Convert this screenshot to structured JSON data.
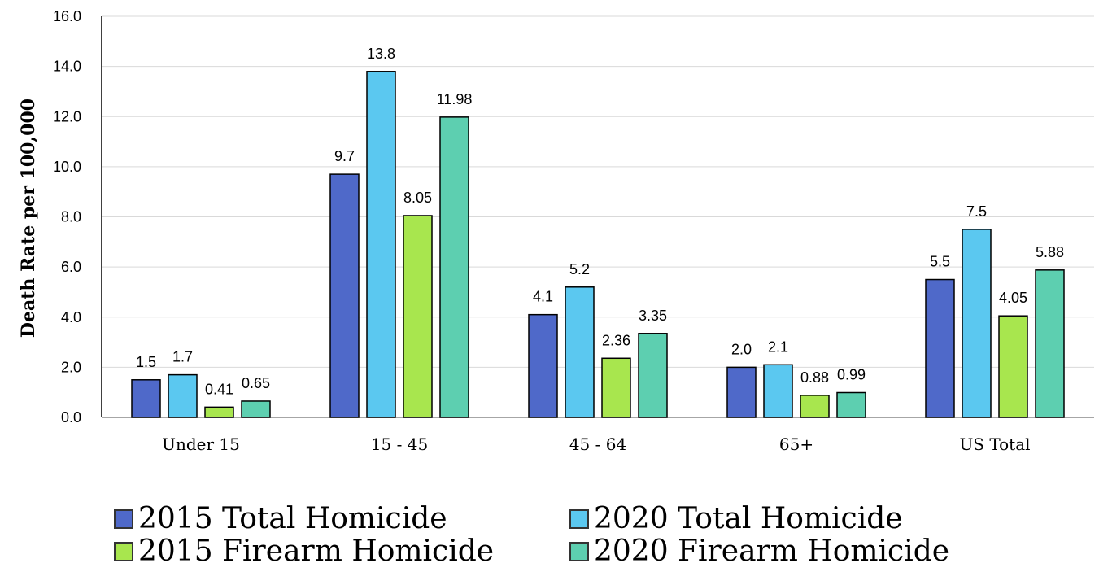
{
  "chart_data": {
    "type": "bar",
    "title": "",
    "xlabel": "",
    "ylabel": "Death Rate per 100,000",
    "ylim": [
      0,
      16
    ],
    "yticks": [
      "0.0",
      "2.0",
      "4.0",
      "6.0",
      "8.0",
      "10.0",
      "12.0",
      "14.0",
      "16.0"
    ],
    "grid": true,
    "legend_position": "bottom",
    "categories": [
      "Under 15",
      "15 - 45",
      "45 - 64",
      "65+",
      "US Total"
    ],
    "series": [
      {
        "name": "2015 Total Homicide",
        "color": "#4f69c9",
        "values": [
          1.5,
          9.7,
          4.1,
          2.0,
          5.5
        ],
        "labels": [
          "1.5",
          "9.7",
          "4.1",
          "2.0",
          "5.5"
        ]
      },
      {
        "name": "2020 Total Homicide",
        "color": "#5bc8f0",
        "values": [
          1.7,
          13.8,
          5.2,
          2.1,
          7.5
        ],
        "labels": [
          "1.7",
          "13.8",
          "5.2",
          "2.1",
          "7.5"
        ]
      },
      {
        "name": "2015 Firearm Homicide",
        "color": "#a8e64e",
        "values": [
          0.41,
          8.05,
          2.36,
          0.88,
          4.05
        ],
        "labels": [
          "0.41",
          "8.05",
          "2.36",
          "0.88",
          "4.05"
        ]
      },
      {
        "name": "2020 Firearm Homicide",
        "color": "#5dcfb0",
        "values": [
          0.65,
          11.98,
          3.35,
          0.99,
          5.88
        ],
        "labels": [
          "0.65",
          "11.98",
          "3.35",
          "0.99",
          "5.88"
        ]
      }
    ]
  }
}
